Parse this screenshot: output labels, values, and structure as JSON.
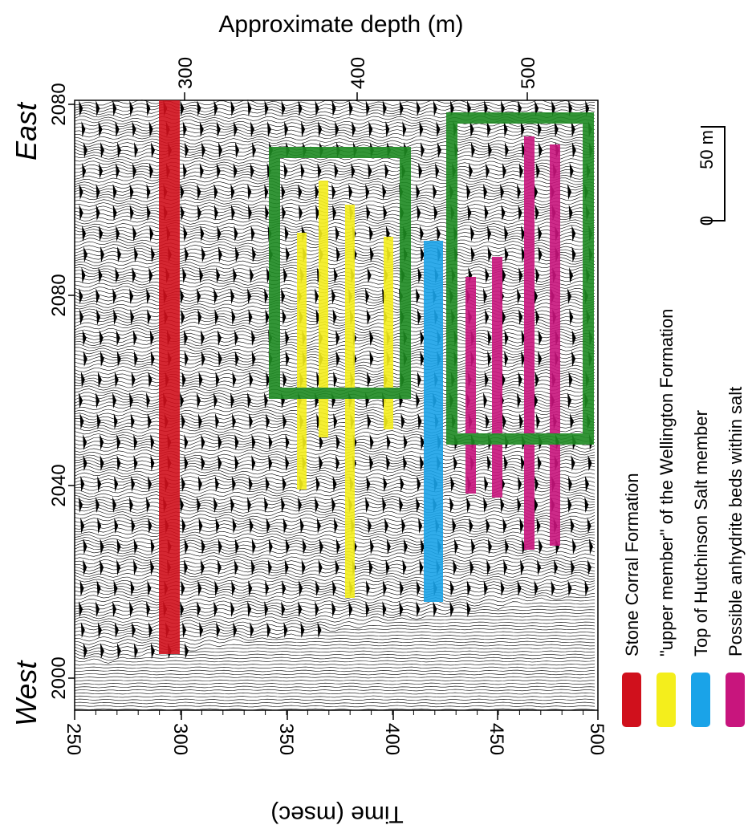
{
  "title": "Approximate depth (m)",
  "time_axis": {
    "label": "Time (msec)",
    "ticks": [
      "250",
      "300",
      "350",
      "400",
      "450",
      "500"
    ]
  },
  "depth_ticks": [
    "300",
    "400",
    "500"
  ],
  "trace_labels": [
    "2080",
    "2080",
    "2040",
    "2000"
  ],
  "side_labels": {
    "top": "East",
    "bottom": "West"
  },
  "scale_bar": {
    "top": "50 m",
    "bottom": "0"
  },
  "legend": [
    {
      "label": "Stone Corral Formation",
      "color": "#d0101c"
    },
    {
      "label": "\"upper member\" of the Wellington Formation",
      "color": "#f4ee1c"
    },
    {
      "label": "Top of Hutchinson Salt member",
      "color": "#1aa3e8"
    },
    {
      "label": "Possible anhydrite beds within salt",
      "color": "#c8157d"
    }
  ]
}
